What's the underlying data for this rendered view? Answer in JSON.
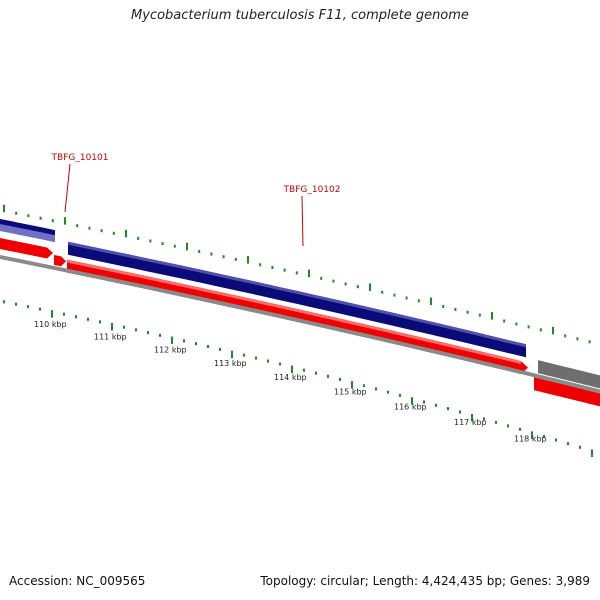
{
  "title": "Mycobacterium tuberculosis F11, complete genome",
  "footer": {
    "accession": "Accession: NC_009565",
    "summary": "Topology: circular; Length: 4,424,435 bp; Genes: 3,989"
  },
  "colors": {
    "forward_gene": "#0a0a78",
    "forward_gene_light": "#7070c8",
    "reverse_gene": "#ee0000",
    "other_feature": "#6e6e6e",
    "backbone": "#8a8a8a",
    "tick": "#1e8c1e",
    "gene_label": "#cc0000"
  },
  "scale_labels": [
    "110 kbp",
    "111 kbp",
    "112 kbp",
    "113 kbp",
    "114 kbp",
    "115 kbp",
    "116 kbp",
    "117 kbp",
    "118 kbp"
  ],
  "gene_labels": [
    {
      "name": "TBFG_10101"
    },
    {
      "name": "TBFG_10102"
    }
  ]
}
